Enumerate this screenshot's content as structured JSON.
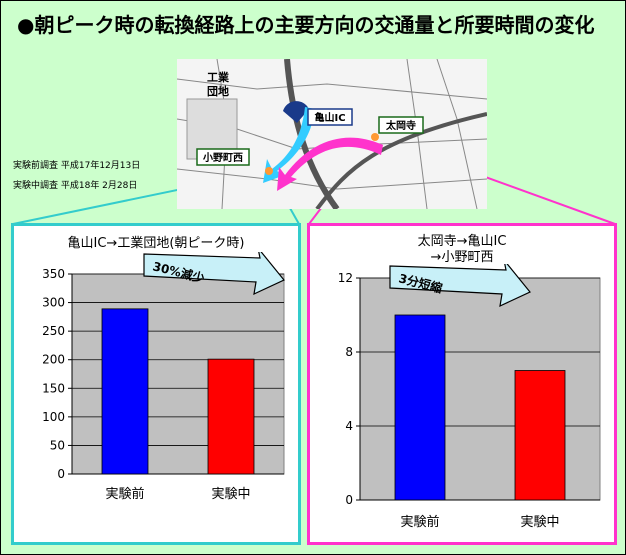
{
  "header": {
    "title": "●朝ピーク時の転換経路上の主要方向の交通量と所要時間の変化"
  },
  "survey": {
    "before": "実験前調査 平成17年12月13日",
    "during": "実験中調査 平成18年 2月28日"
  },
  "map": {
    "labels": {
      "industrial": "工業\n団地",
      "ic": "亀山IC",
      "tadaiji": "太岡寺",
      "onomachi": "小野町西"
    },
    "colors": {
      "arrow_cyan": "#33ccff",
      "arrow_magenta": "#ff33cc",
      "dot": "#ff9933"
    }
  },
  "chart_data": [
    {
      "type": "bar",
      "title": "亀山IC→工業団地(朝ピーク時)",
      "categories": [
        "実験前",
        "実験中"
      ],
      "values": [
        289,
        201
      ],
      "ylim": [
        0,
        350
      ],
      "yticks": [
        0,
        50,
        100,
        150,
        200,
        250,
        300,
        350
      ],
      "colors": [
        "#0000ff",
        "#ff0000"
      ],
      "annotation": "30%減少",
      "grid": true
    },
    {
      "type": "bar",
      "title": "太岡寺→亀山IC\n→小野町西",
      "categories": [
        "実験前",
        "実験中"
      ],
      "values": [
        10,
        7
      ],
      "ylim": [
        0,
        12
      ],
      "yticks": [
        0,
        4,
        8,
        12
      ],
      "colors": [
        "#0000ff",
        "#ff0000"
      ],
      "annotation": "3分短縮",
      "grid": true
    }
  ]
}
